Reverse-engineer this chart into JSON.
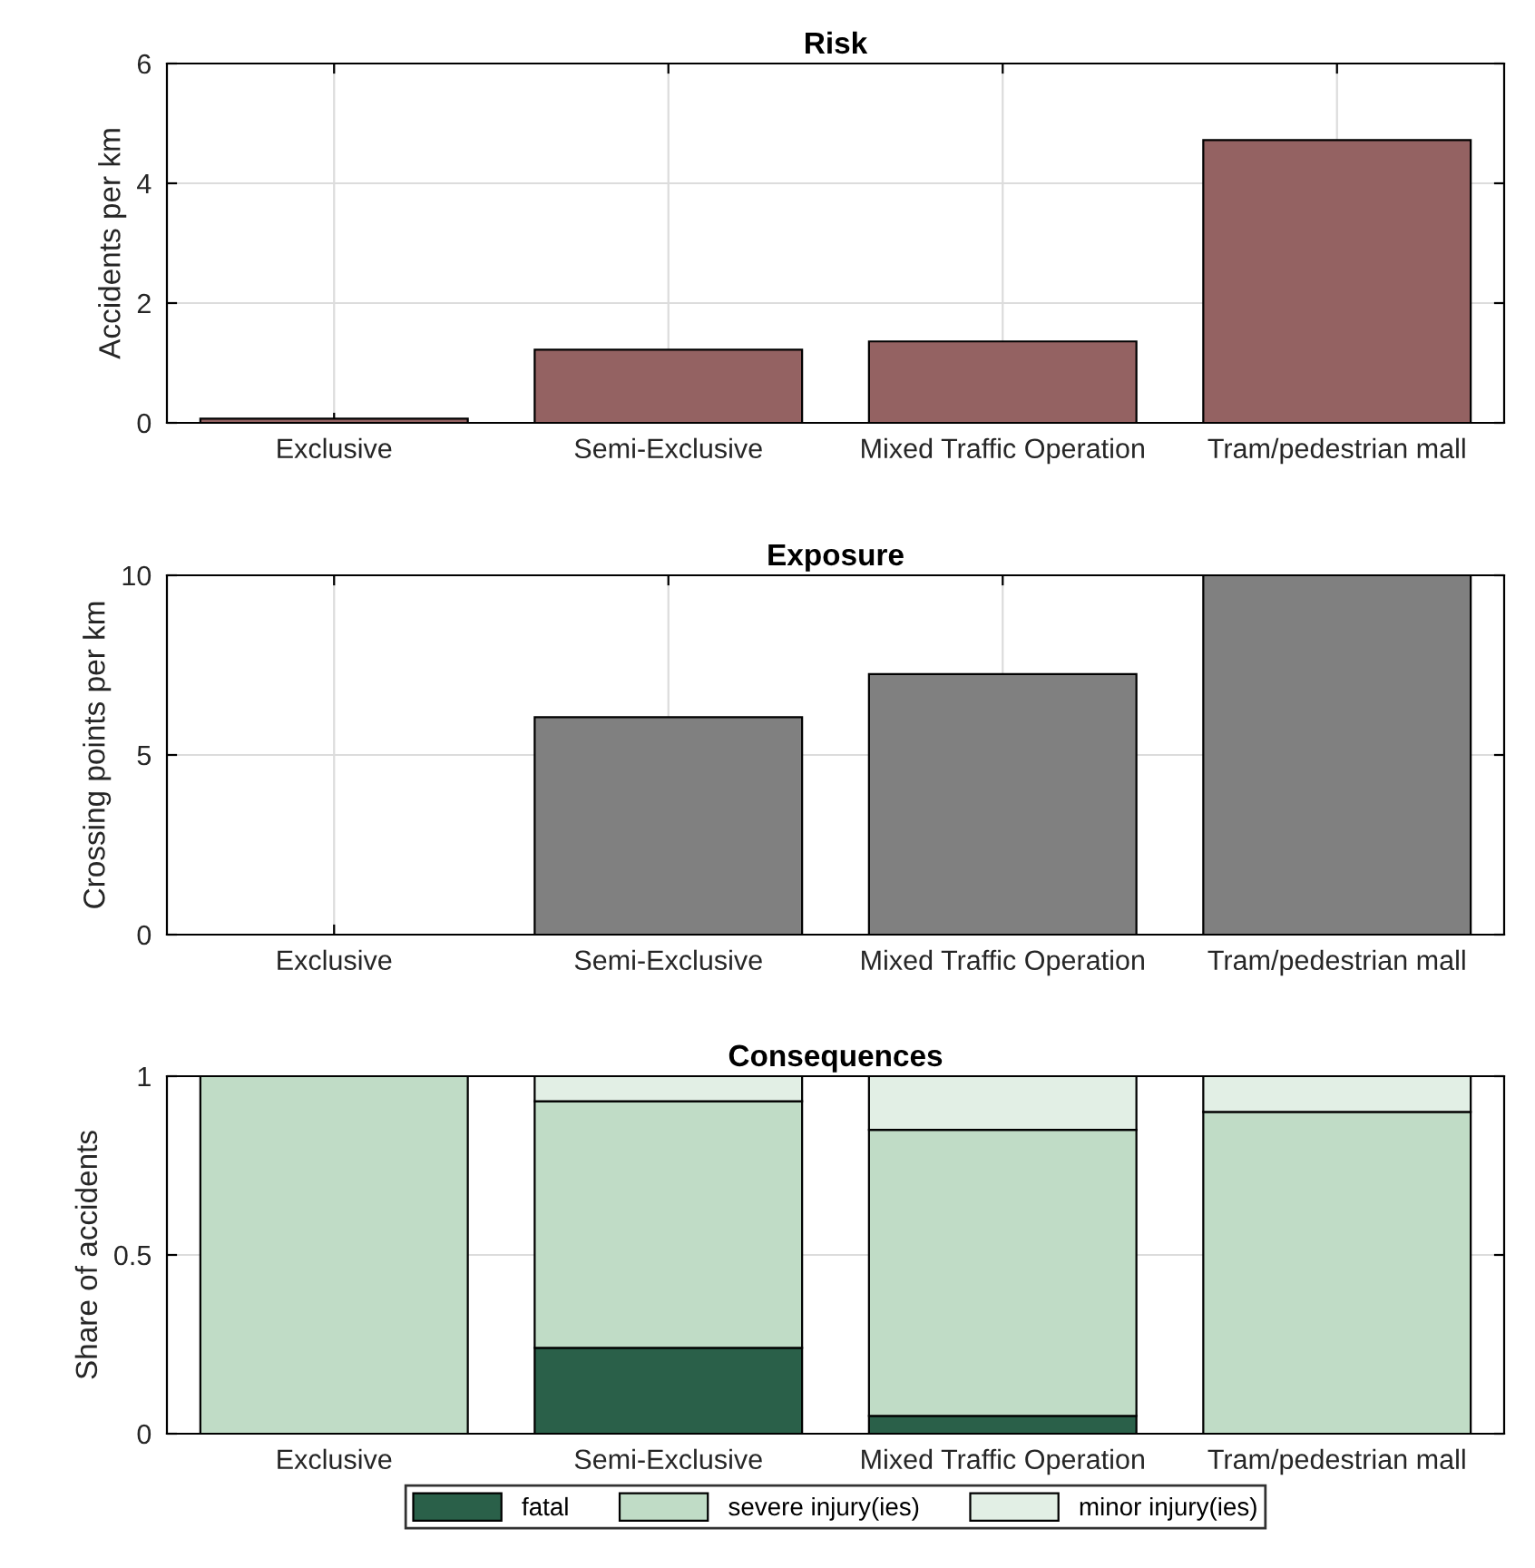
{
  "chart_data": [
    {
      "type": "bar",
      "title": "Risk",
      "ylabel": "Accidents per km",
      "categories": [
        "Exclusive",
        "Semi-Exclusive",
        "Mixed Traffic Operation",
        "Tram/pedestrian mall"
      ],
      "series": [
        {
          "color": "#946262",
          "values": [
            0.07,
            1.22,
            1.36,
            4.72
          ]
        }
      ],
      "ylim": [
        0,
        6
      ],
      "yticks": [
        0,
        2,
        4,
        6
      ],
      "grid": true
    },
    {
      "type": "bar",
      "title": "Exposure",
      "ylabel": "Crossing points per km",
      "categories": [
        "Exclusive",
        "Semi-Exclusive",
        "Mixed Traffic Operation",
        "Tram/pedestrian mall"
      ],
      "series": [
        {
          "color": "#808080",
          "values": [
            0,
            6.05,
            7.25,
            10
          ]
        }
      ],
      "ylim": [
        0,
        10
      ],
      "yticks": [
        0,
        5,
        10
      ],
      "grid": true
    },
    {
      "type": "bar",
      "title": "Consequences",
      "ylabel": "Share of accidents",
      "categories": [
        "Exclusive",
        "Semi-Exclusive",
        "Mixed Traffic Operation",
        "Tram/pedestrian mall"
      ],
      "stacked": true,
      "series": [
        {
          "name": "fatal",
          "color": "#2a6049",
          "values": [
            0,
            0.24,
            0.05,
            0
          ]
        },
        {
          "name": "severe injury(ies)",
          "color": "#c0dcc6",
          "values": [
            1,
            0.69,
            0.8,
            0.9
          ]
        },
        {
          "name": "minor injury(ies)",
          "color": "#e2efe5",
          "values": [
            0,
            0.07,
            0.15,
            0.1
          ]
        }
      ],
      "ylim": [
        0,
        1
      ],
      "yticks": [
        0,
        {
          "value": 0.5,
          "label": "0.5"
        },
        1
      ],
      "grid": true,
      "legend": "bottom"
    }
  ]
}
